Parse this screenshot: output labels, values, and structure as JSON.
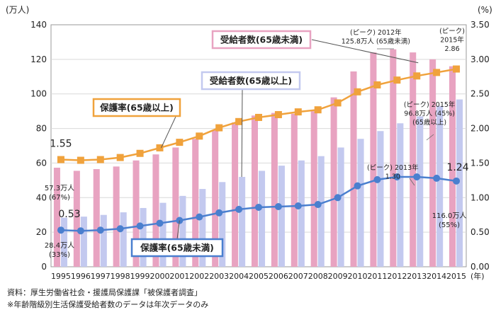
{
  "chart_data": {
    "type": "bar",
    "title": "",
    "x": [
      "1995",
      "1996",
      "1997",
      "1998",
      "1999",
      "2000",
      "2001",
      "2002",
      "2003",
      "2004",
      "2005",
      "2006",
      "2007",
      "2008",
      "2009",
      "2010",
      "2011",
      "2012",
      "2013",
      "2014",
      "2015"
    ],
    "xunit": "(年)",
    "left_axis": {
      "unit": "(万人)",
      "ylim": [
        0,
        140
      ],
      "ticks": [
        "0",
        "20",
        "40",
        "60",
        "80",
        "100",
        "120",
        "140"
      ]
    },
    "right_axis": {
      "unit": "(%)",
      "ylim": [
        0,
        3.5
      ],
      "ticks": [
        "0.00",
        "0.50",
        "1.00",
        "1.50",
        "2.00",
        "2.50",
        "3.00",
        "3.50"
      ]
    },
    "series": [
      {
        "name": "受給者数(65歳未満)",
        "kind": "bar",
        "axis": "left",
        "color": "#e8a3c1",
        "values": [
          57.3,
          55.5,
          56.5,
          58,
          61.5,
          65,
          69,
          74,
          79,
          83.5,
          87.5,
          89,
          88.5,
          90,
          98,
          113,
          124,
          125.8,
          124,
          120,
          116
        ]
      },
      {
        "name": "受給者数(65歳以上)",
        "kind": "bar",
        "axis": "left",
        "color": "#c3c9ef",
        "values": [
          28.4,
          29,
          30,
          31.5,
          34,
          37,
          41,
          45,
          49,
          52,
          55.5,
          58.5,
          61.5,
          64,
          69,
          74,
          78.5,
          83,
          87,
          93,
          96.8
        ]
      },
      {
        "name": "保護率(65歳以上)",
        "kind": "line",
        "axis": "right",
        "color": "#f0a23c",
        "values": [
          1.55,
          1.54,
          1.55,
          1.58,
          1.64,
          1.72,
          1.8,
          1.89,
          2.01,
          2.1,
          2.16,
          2.2,
          2.24,
          2.27,
          2.37,
          2.53,
          2.63,
          2.7,
          2.76,
          2.81,
          2.86
        ]
      },
      {
        "name": "保護率(65歳未満)",
        "kind": "line",
        "axis": "right",
        "color": "#4a7fcf",
        "values": [
          0.53,
          0.52,
          0.53,
          0.55,
          0.59,
          0.63,
          0.67,
          0.72,
          0.78,
          0.83,
          0.86,
          0.87,
          0.88,
          0.9,
          1.0,
          1.17,
          1.26,
          1.3,
          1.3,
          1.28,
          1.24
        ]
      }
    ],
    "line_value_labels": [
      {
        "series": 2,
        "index": 0,
        "text": "1.55"
      },
      {
        "series": 3,
        "index": 0,
        "text": "0.53"
      },
      {
        "series": 3,
        "index": 20,
        "text": "1.24"
      }
    ],
    "annotations": [
      {
        "id": "bar-1995-under65",
        "lines": [
          "57.3万人",
          "(67%)"
        ]
      },
      {
        "id": "bar-1995-over65",
        "lines": [
          "28.4万人",
          "(33%)"
        ]
      },
      {
        "id": "peak-2012-under65",
        "lines": [
          "(ピーク) 2012年",
          "125.8万人 (65歳未満)"
        ]
      },
      {
        "id": "peak-2015-rate",
        "lines": [
          "(ピーク)",
          "2015年",
          "2.86"
        ]
      },
      {
        "id": "peak-2015-over65",
        "lines": [
          "(ピーク)  2015年",
          "96.8万人  (45%)",
          "(65歳以上)"
        ]
      },
      {
        "id": "peak-2013-rate",
        "lines": [
          "(ピーク) 2013年",
          "1.30"
        ]
      },
      {
        "id": "bar-2015-under65",
        "lines": [
          "116.0万人",
          "(55%)"
        ]
      }
    ],
    "callouts": [
      {
        "id": "callout-recipients-under65",
        "text": "受給者数(65歳未満)",
        "color": "#e8a3c1"
      },
      {
        "id": "callout-recipients-over65",
        "text": "受給者数(65歳以上)",
        "color": "#c3c9ef"
      },
      {
        "id": "callout-rate-over65",
        "text": "保護率(65歳以上)",
        "color": "#f0a23c"
      },
      {
        "id": "callout-rate-under65",
        "text": "保護率(65歳未満)",
        "color": "#4a7fcf"
      }
    ]
  },
  "footnotes": {
    "source": "資料：厚生労働省社会・援護局保護課「被保護者調査」",
    "note": "※年齢階級別生活保護受給者数のデータは年次データのみ"
  }
}
